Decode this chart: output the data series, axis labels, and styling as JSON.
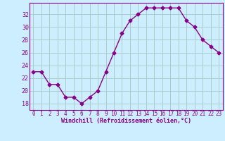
{
  "x": [
    0,
    1,
    2,
    3,
    4,
    5,
    6,
    7,
    8,
    9,
    10,
    11,
    12,
    13,
    14,
    15,
    16,
    17,
    18,
    19,
    20,
    21,
    22,
    23
  ],
  "y": [
    23,
    23,
    21,
    21,
    19,
    19,
    18,
    19,
    20,
    23,
    26,
    29,
    31,
    32,
    33,
    33,
    33,
    33,
    33,
    31,
    30,
    28,
    27,
    26
  ],
  "line_color": "#880088",
  "marker": "D",
  "marker_size": 2.5,
  "bg_color": "#cceeff",
  "grid_color": "#aacccc",
  "xlabel": "Windchill (Refroidissement éolien,°C)",
  "tick_color": "#880088",
  "yticks": [
    18,
    20,
    22,
    24,
    26,
    28,
    30,
    32
  ],
  "ylim": [
    17.0,
    33.8
  ],
  "xlim": [
    -0.5,
    23.5
  ],
  "xticks": [
    0,
    1,
    2,
    3,
    4,
    5,
    6,
    7,
    8,
    9,
    10,
    11,
    12,
    13,
    14,
    15,
    16,
    17,
    18,
    19,
    20,
    21,
    22,
    23
  ]
}
